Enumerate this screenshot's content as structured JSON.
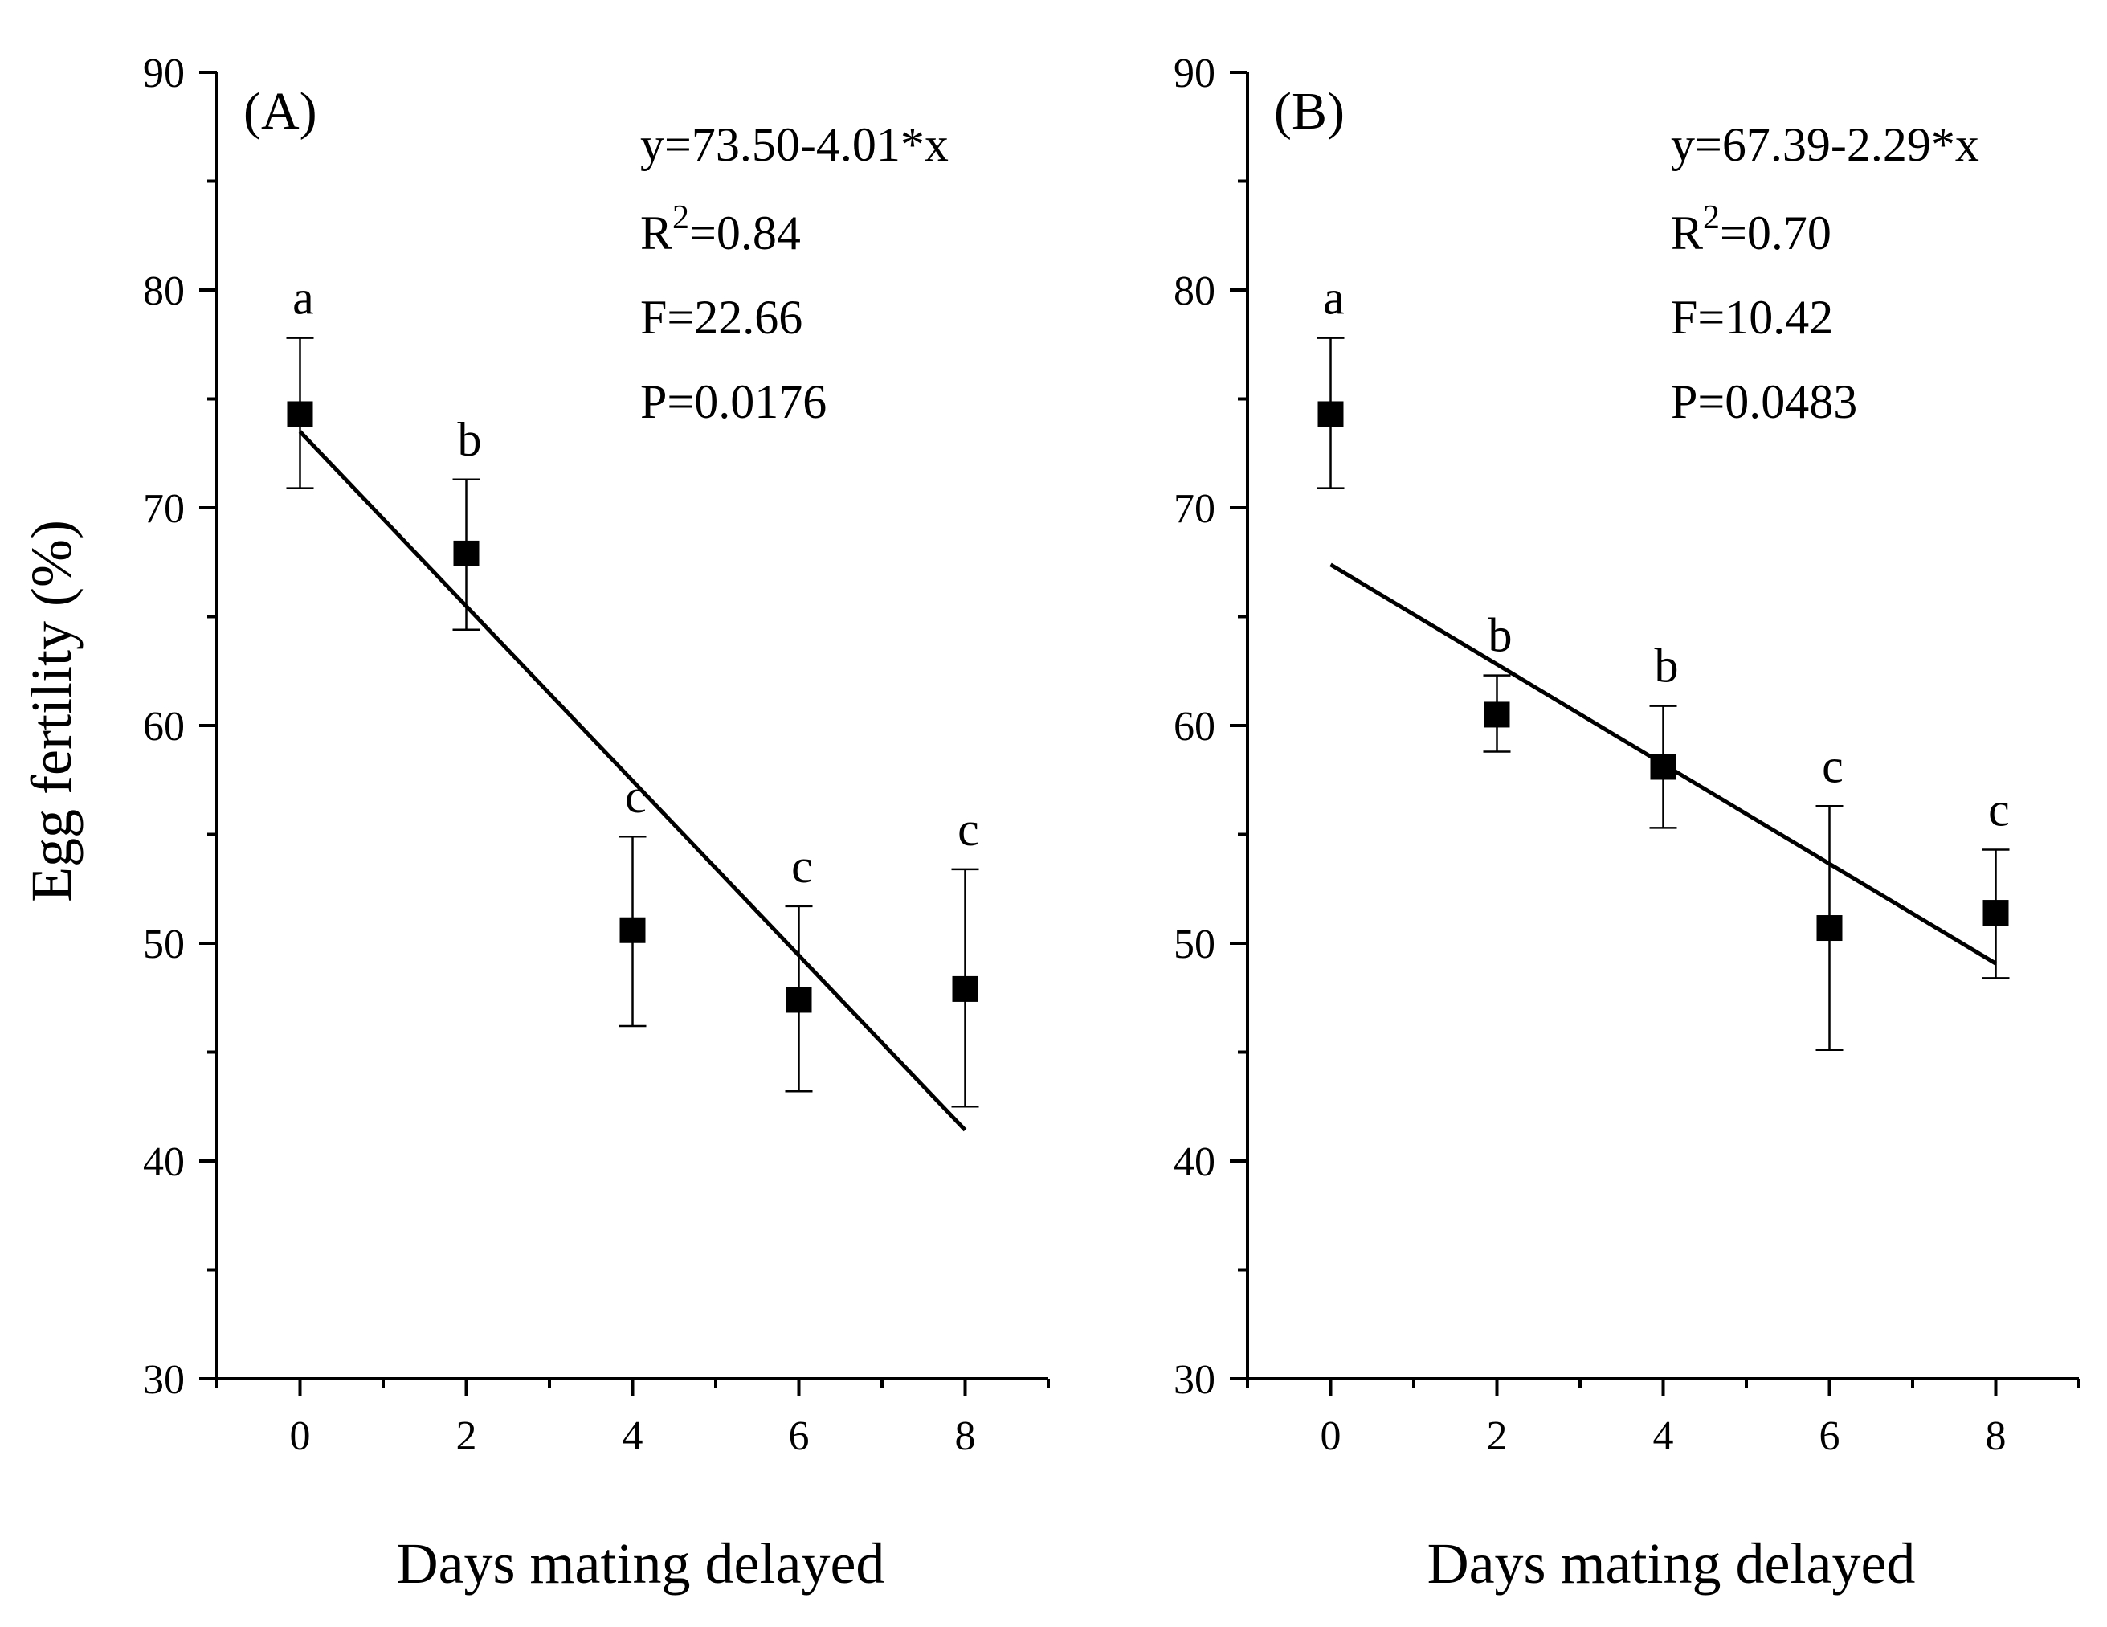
{
  "chart_data": [
    {
      "type": "scatter",
      "panel_label": "(A)",
      "xlabel": "Days mating delayed",
      "ylabel": "Egg fertility (%)",
      "xlim": [
        -1,
        9
      ],
      "ylim": [
        30,
        90
      ],
      "x_ticks": [
        "0",
        "2",
        "4",
        "6",
        "8"
      ],
      "y_ticks": [
        "30",
        "40",
        "50",
        "60",
        "70",
        "80",
        "90"
      ],
      "points": [
        {
          "x": 0,
          "y": 74.3,
          "err_low": 70.9,
          "err_high": 77.8,
          "letter": "a"
        },
        {
          "x": 2,
          "y": 67.9,
          "err_low": 64.4,
          "err_high": 71.3,
          "letter": "b"
        },
        {
          "x": 4,
          "y": 50.6,
          "err_low": 46.2,
          "err_high": 54.9,
          "letter": "c"
        },
        {
          "x": 6,
          "y": 47.4,
          "err_low": 43.2,
          "err_high": 51.7,
          "letter": "c"
        },
        {
          "x": 8,
          "y": 47.9,
          "err_low": 42.5,
          "err_high": 53.4,
          "letter": "c"
        }
      ],
      "fit": {
        "intercept": 73.5,
        "slope": -4.01,
        "x_range": [
          0,
          8
        ]
      },
      "stats": {
        "equation": "y=73.50-4.01*x",
        "r2_label": "R",
        "r2_sup": "2",
        "r2_value": "=0.84",
        "f": "F=22.66",
        "p": "P=0.0176"
      },
      "grid": false,
      "legend": "none"
    },
    {
      "type": "scatter",
      "panel_label": "(B)",
      "xlabel": "Days mating delayed",
      "ylabel": "",
      "xlim": [
        -1,
        9
      ],
      "ylim": [
        30,
        90
      ],
      "x_ticks": [
        "0",
        "2",
        "4",
        "6",
        "8"
      ],
      "y_ticks": [
        "30",
        "40",
        "50",
        "60",
        "70",
        "80",
        "90"
      ],
      "points": [
        {
          "x": 0,
          "y": 74.3,
          "err_low": 70.9,
          "err_high": 77.8,
          "letter": "a"
        },
        {
          "x": 2,
          "y": 60.5,
          "err_low": 58.8,
          "err_high": 62.3,
          "letter": "b"
        },
        {
          "x": 4,
          "y": 58.1,
          "err_low": 55.3,
          "err_high": 60.9,
          "letter": "b"
        },
        {
          "x": 6,
          "y": 50.7,
          "err_low": 45.1,
          "err_high": 56.3,
          "letter": "c"
        },
        {
          "x": 8,
          "y": 51.4,
          "err_low": 48.4,
          "err_high": 54.3,
          "letter": "c"
        }
      ],
      "fit": {
        "intercept": 67.39,
        "slope": -2.29,
        "x_range": [
          0,
          8
        ]
      },
      "stats": {
        "equation": "y=67.39-2.29*x",
        "r2_label": "R",
        "r2_sup": "2",
        "r2_value": "=0.70",
        "f": "F=10.42",
        "p": "P=0.0483"
      },
      "grid": false,
      "legend": "none"
    }
  ]
}
